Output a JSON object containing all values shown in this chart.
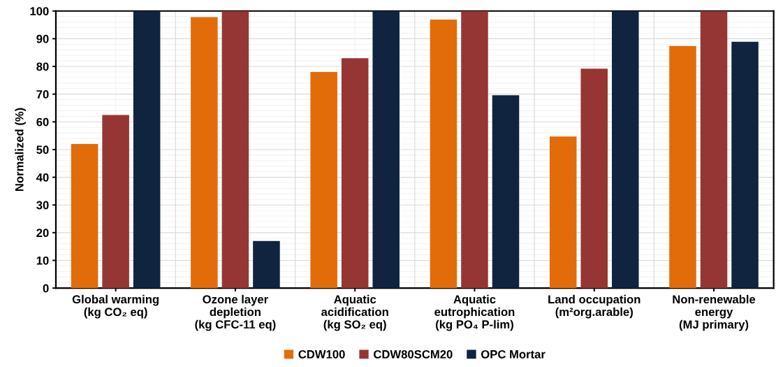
{
  "chart_data": {
    "type": "bar",
    "ylabel": "Normalized (%)",
    "categories": [
      "Global warming\n(kg CO₂ eq)",
      "Ozone layer\ndepletion\n(kg CFC-11 eq)",
      "Aquatic\nacidification\n(kg SO₂ eq)",
      "Aquatic\neutrophication\n(kg PO₄ P-lim)",
      "Land occupation\n(m²org.arable)",
      "Non-renewable\nenergy\n(MJ primary)"
    ],
    "series": [
      {
        "name": "CDW100",
        "color": "#e36c0a",
        "values": [
          52,
          97.8,
          78,
          96.9,
          54.7,
          87.4
        ]
      },
      {
        "name": "CDW80SCM20",
        "color": "#963634",
        "values": [
          62.5,
          100,
          83,
          100,
          79.2,
          100
        ]
      },
      {
        "name": "OPC Mortar",
        "color": "#10243f",
        "values": [
          100,
          17,
          100,
          69.6,
          100,
          88.9
        ]
      }
    ],
    "ylim": [
      0,
      100
    ],
    "yticks": [
      0,
      10,
      20,
      30,
      40,
      50,
      60,
      70,
      80,
      90,
      100
    ],
    "grid": true,
    "legend": "bottom"
  }
}
